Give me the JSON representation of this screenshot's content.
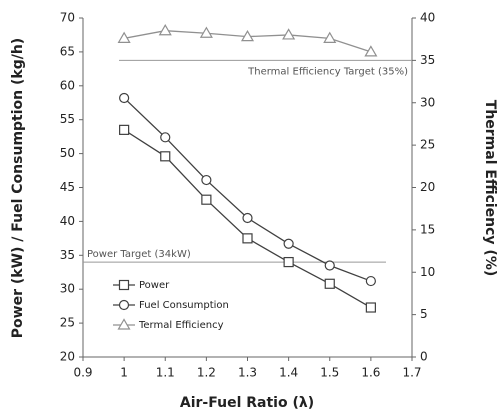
{
  "chart_data": {
    "type": "line",
    "x_label": "Air-Fuel Ratio (λ)",
    "y_label": "Power (kW) / Fuel Consumption (kg/h)",
    "y2_label": "Thermal Efficiency (%)",
    "x": [
      1.0,
      1.1,
      1.2,
      1.3,
      1.4,
      1.5,
      1.6
    ],
    "series": [
      {
        "name": "Power",
        "color": "#404040",
        "marker": "square",
        "values": [
          53.5,
          49.6,
          43.2,
          37.5,
          34.0,
          30.8,
          27.3
        ]
      },
      {
        "name": "Fuel Consumption",
        "color": "#404040",
        "marker": "circle",
        "values": [
          58.2,
          52.4,
          46.1,
          40.5,
          36.7,
          33.5,
          31.2
        ]
      },
      {
        "name": "Termal Efficiency",
        "color": "#909090",
        "marker": "triangle",
        "axis": "y2",
        "values": [
          37.6,
          38.5,
          38.2,
          37.8,
          38.0,
          37.6,
          36.0
        ]
      }
    ],
    "annotations": [
      {
        "text": "Power Target (34kW)",
        "value": 34,
        "axis": "y"
      },
      {
        "text": "Thermal Efficiency Target (35%)",
        "value": 35,
        "axis": "y2"
      }
    ],
    "xlim": [
      0.9,
      1.7
    ],
    "xticks": [
      0.9,
      1,
      1.1,
      1.2,
      1.3,
      1.4,
      1.5,
      1.6,
      1.7
    ],
    "ylim": [
      20,
      70
    ],
    "yticks": [
      20,
      25,
      30,
      35,
      40,
      45,
      50,
      55,
      60,
      65,
      70
    ],
    "y2lim": [
      0,
      40
    ],
    "y2ticks": [
      0,
      5,
      10,
      15,
      20,
      25,
      30,
      35,
      40
    ],
    "legend": "lower left"
  }
}
